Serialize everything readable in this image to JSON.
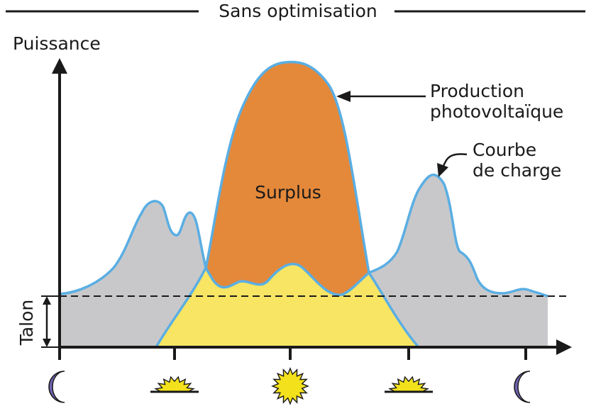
{
  "title": "Sans optimisation",
  "axis": {
    "y_label": "Puissance",
    "talon_label": "Talon"
  },
  "annotations": {
    "surplus": "Surplus",
    "production_line1": "Production",
    "production_line2": "photovoltaïque",
    "charge_line1": "Courbe",
    "charge_line2": "de charge"
  },
  "time_icons": [
    "moon-icon",
    "sunrise-icon",
    "sun-icon",
    "sunset-icon",
    "moon-icon"
  ],
  "colors": {
    "surplus": "#e4883a",
    "self_consumption": "#f8e564",
    "load": "#c8c8ca",
    "curve_stroke": "#5aaee3",
    "moon": "#6e63b2",
    "sun": "#f3e11c"
  }
}
